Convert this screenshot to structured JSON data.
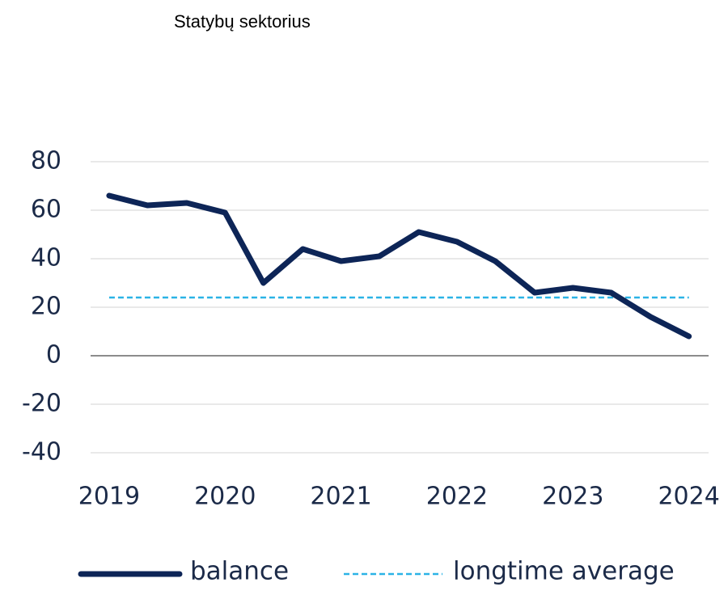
{
  "chart_data": {
    "type": "line",
    "title": "Statybų sektorius",
    "x": [
      2019,
      2019.33,
      2019.67,
      2020,
      2020.33,
      2020.67,
      2021,
      2021.33,
      2021.67,
      2022,
      2022.33,
      2022.67,
      2023,
      2023.33,
      2023.67,
      2024
    ],
    "series": [
      {
        "name": "balance",
        "color": "#0d2557",
        "dashed": false,
        "values": [
          66,
          62,
          63,
          59,
          30,
          44,
          39,
          41,
          51,
          47,
          39,
          26,
          28,
          26,
          16,
          8
        ]
      },
      {
        "name": "longtime average",
        "color": "#2bb3e6",
        "dashed": true,
        "values": [
          24,
          24,
          24,
          24,
          24,
          24,
          24,
          24,
          24,
          24,
          24,
          24,
          24,
          24,
          24,
          24
        ]
      }
    ],
    "xlim": [
      2018.84,
      2024.17
    ],
    "xticks": [
      2019,
      2020,
      2021,
      2022,
      2023,
      2024
    ],
    "ylim": [
      -40,
      80
    ],
    "yticks": [
      -40,
      -20,
      0,
      20,
      40,
      60,
      80
    ],
    "grid": true,
    "legend": "bottom"
  }
}
